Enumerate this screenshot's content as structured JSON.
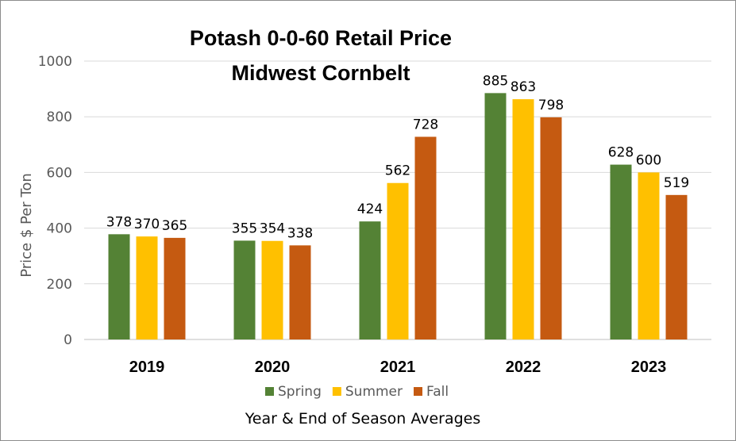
{
  "chart_data": {
    "type": "bar",
    "title_lines": [
      "Potash 0-0-60  Retail Price",
      "Midwest Cornbelt"
    ],
    "xlabel": "Year & End of Season Averages",
    "ylabel": "Price $ Per Ton",
    "ylim": [
      0,
      1000
    ],
    "yticks": [
      0,
      200,
      400,
      600,
      800,
      1000
    ],
    "grid": true,
    "legend_position": "bottom",
    "categories": [
      "2019",
      "2020",
      "2021",
      "2022",
      "2023"
    ],
    "series": [
      {
        "name": "Spring",
        "color": "#548235",
        "values": [
          378,
          355,
          424,
          885,
          628
        ]
      },
      {
        "name": "Summer",
        "color": "#ffc000",
        "values": [
          370,
          354,
          562,
          863,
          600
        ]
      },
      {
        "name": "Fall",
        "color": "#c55a11",
        "values": [
          365,
          338,
          728,
          798,
          519
        ]
      }
    ]
  }
}
